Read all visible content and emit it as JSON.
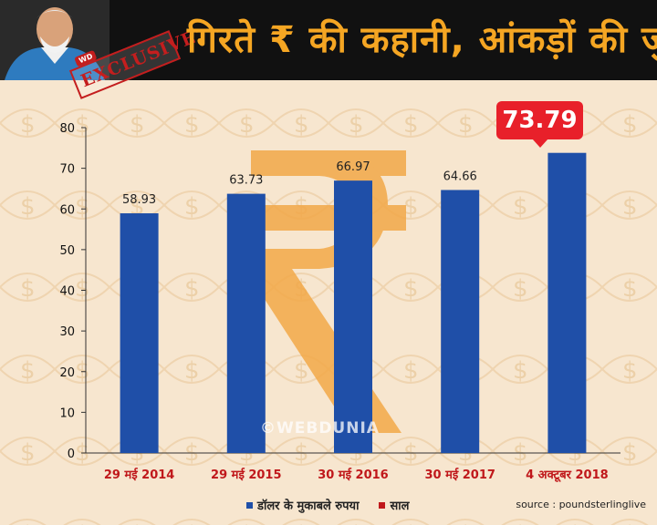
{
  "header": {
    "title": "गिरते ₹ की कहानी, आंकड़ों की जुबानी",
    "badge_label": "EXCLUSIVE",
    "badge_brand": "WD"
  },
  "watermark": "©WEBDUNIA",
  "highlight": {
    "label": "73.79",
    "color": "#e8202a"
  },
  "source": "source : poundsterlinglive",
  "colors": {
    "bar": "#1f4fa8",
    "accent": "#f5a623",
    "legend_red": "#c0181b"
  },
  "chart_data": {
    "type": "bar",
    "categories": [
      "29 मई 2014",
      "29 मई 2015",
      "30 मई 2016",
      "30 मई 2017",
      "4 अक्टूबर 2018"
    ],
    "series": [
      {
        "name": "डॉलर के मुकाबले रुपया",
        "values": [
          58.93,
          63.73,
          66.97,
          64.66,
          73.79
        ]
      }
    ],
    "data_labels": [
      "58.93",
      "63.73",
      "66.97",
      "64.66",
      ""
    ],
    "legend": [
      {
        "name": "डॉलर के मुकाबले रुपया",
        "color": "#1f4fa8"
      },
      {
        "name": "साल",
        "color": "#c0181b"
      }
    ],
    "legend_position": "bottom",
    "ylim": [
      0,
      80
    ],
    "yticks": [
      0,
      10,
      20,
      30,
      40,
      50,
      60,
      70,
      80
    ],
    "grid": false
  }
}
